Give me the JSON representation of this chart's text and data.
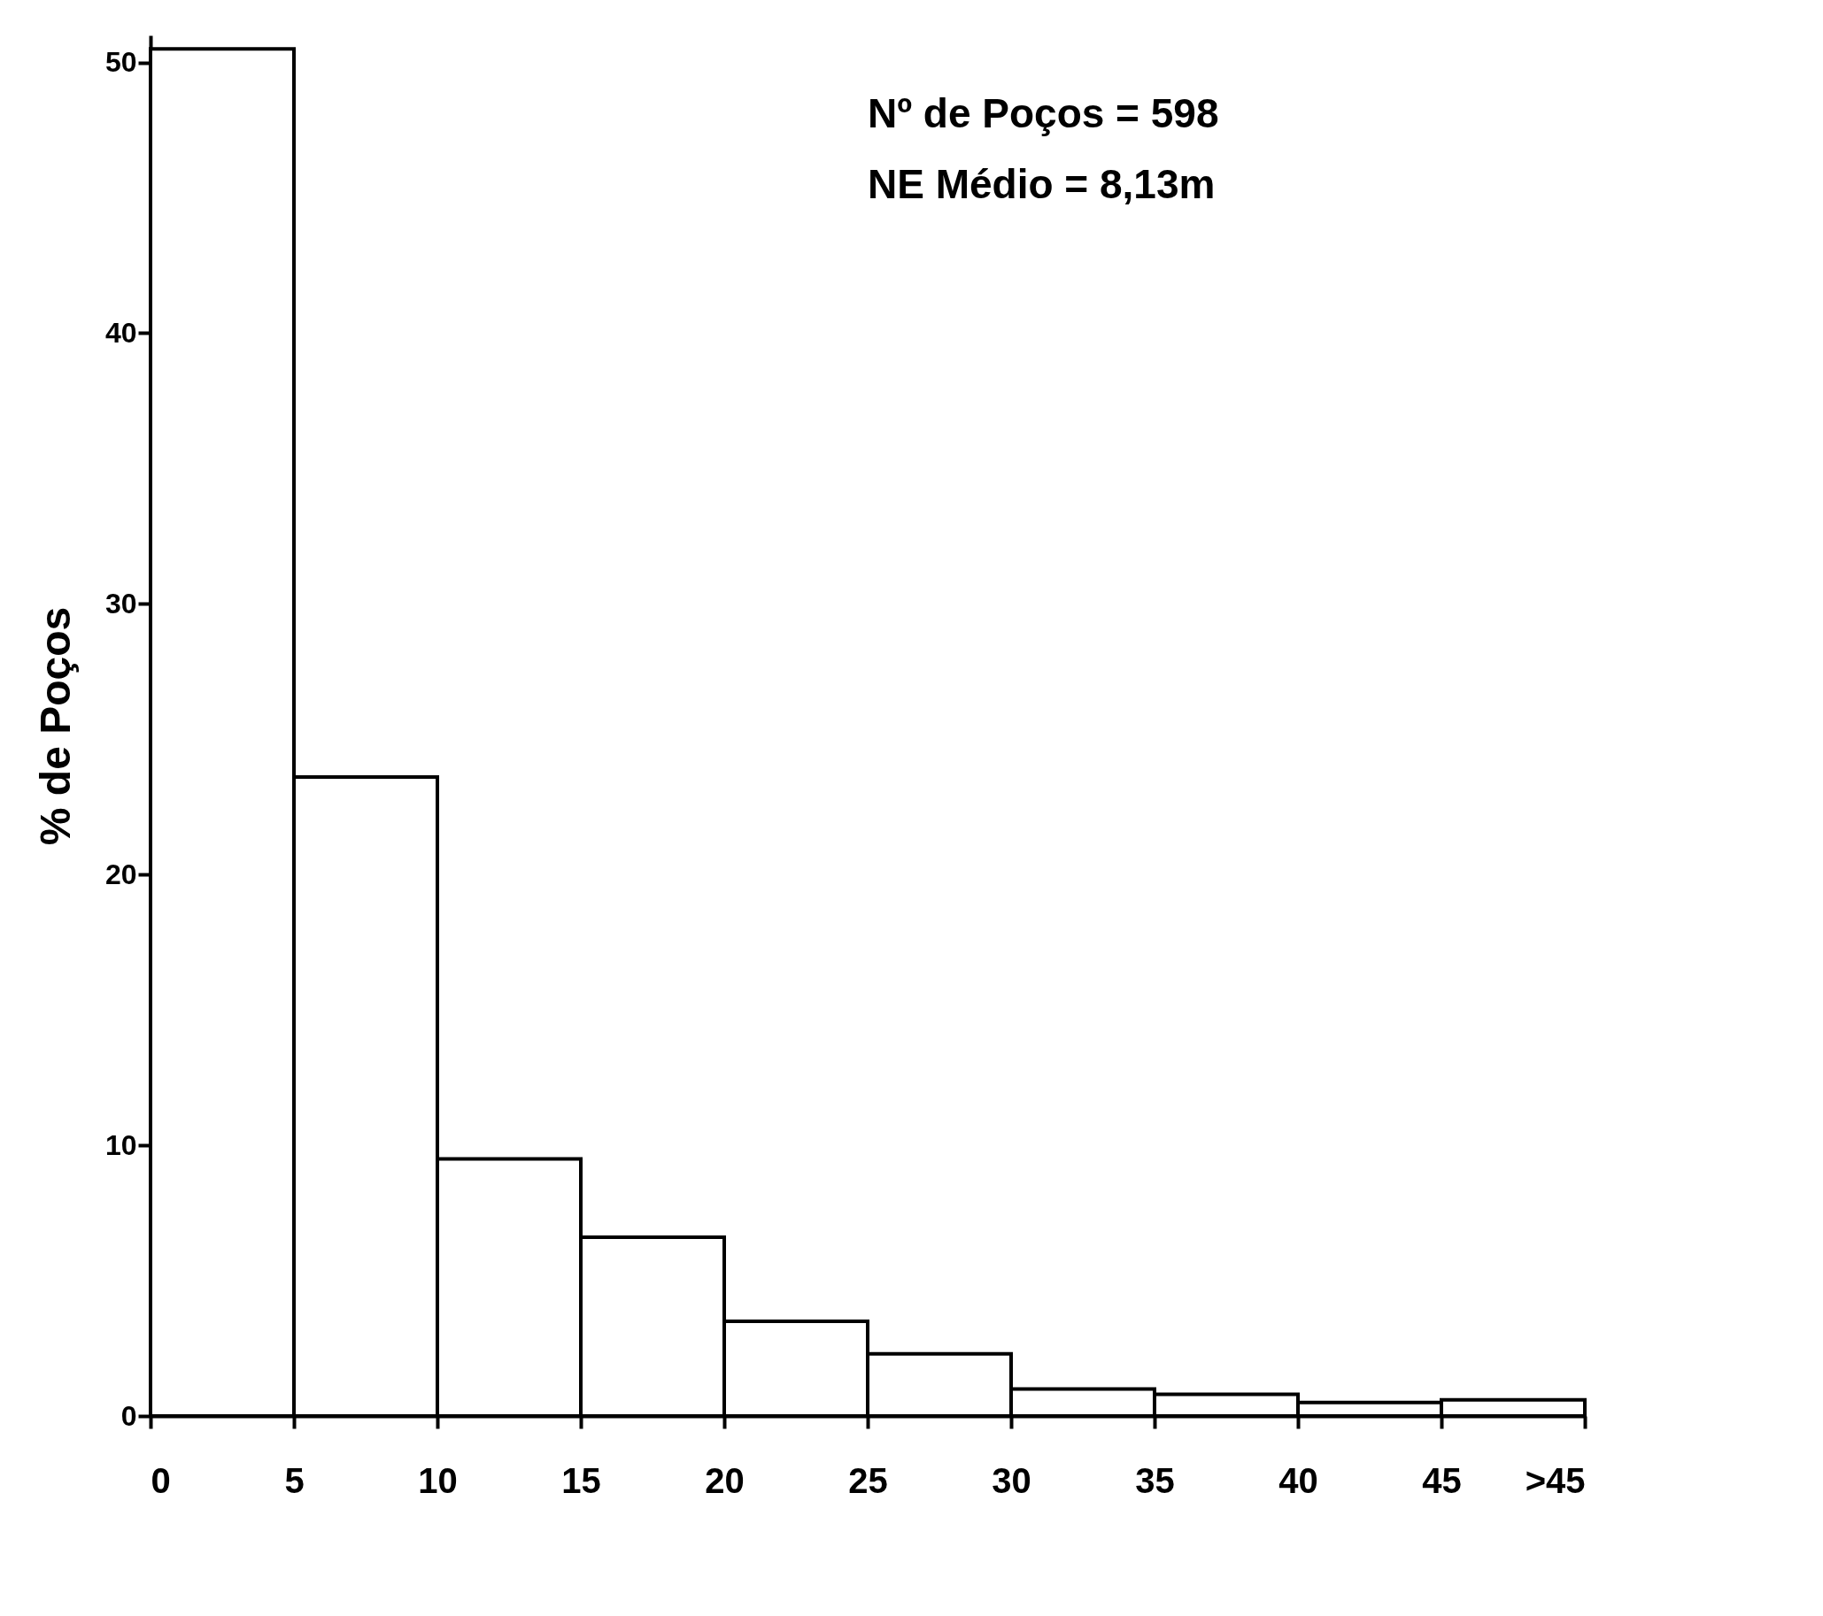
{
  "chart_data": {
    "type": "histogram",
    "ylabel": "% de Poços",
    "bins": [
      0,
      5,
      10,
      15,
      20,
      25,
      30,
      35,
      40,
      45,
      50
    ],
    "values": [
      50.5,
      23.6,
      9.5,
      6.6,
      3.5,
      2.3,
      1.0,
      0.8,
      0.5,
      0.6
    ],
    "color": "#ffffff",
    "xlim": [
      0,
      50
    ],
    "xticks": [
      0,
      5,
      10,
      15,
      20,
      25,
      30,
      35,
      40,
      45,
      {
        "value": 50,
        "label": ">45"
      }
    ],
    "ylim": [
      0,
      51
    ],
    "yticks": [
      0,
      10,
      20,
      30,
      40,
      50
    ],
    "grid": false,
    "annotations": [
      "Nº de Poços = 598",
      "NE Médio = 8,13m"
    ]
  }
}
